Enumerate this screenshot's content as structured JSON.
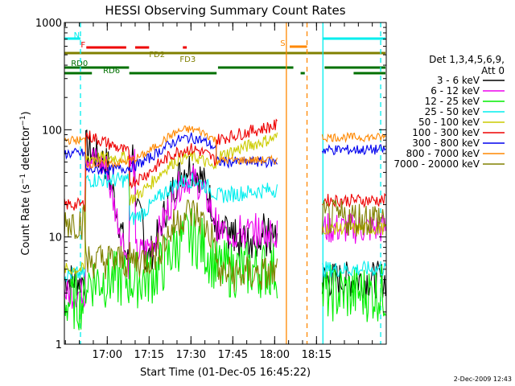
{
  "chart_data": {
    "type": "line",
    "title": "HESSI Observing Summary Count Rates",
    "xlabel": "Start Time (01-Dec-05 16:45:22)",
    "ylabel": "Count Rate (s⁻¹ detector⁻¹)",
    "ylabel_main": "Count Rate (s",
    "ylabel_sup1": "−1",
    "ylabel_mid": " detector",
    "ylabel_sup2": "−1",
    "ylabel_end": ")",
    "yscale": "log",
    "ylim": [
      1,
      1000
    ],
    "xlim_minutes": [
      -15.37,
      100.0
    ],
    "x_ticks": [
      {
        "label": "17:00",
        "min": 0
      },
      {
        "label": "17:15",
        "min": 15
      },
      {
        "label": "17:30",
        "min": 30
      },
      {
        "label": "17:45",
        "min": 45
      },
      {
        "label": "18:00",
        "min": 60
      },
      {
        "label": "18:15",
        "min": 75
      }
    ],
    "y_ticks": [
      {
        "label": "1",
        "v": 1
      },
      {
        "label": "10",
        "v": 10
      },
      {
        "label": "100",
        "v": 100
      },
      {
        "label": "1000",
        "v": 1000
      }
    ],
    "legend_header_1": "Det 1,3,4,5,6,9,",
    "legend_header_2": "Att 0",
    "legend_placement": "right",
    "timestamp": "2-Dec-2009 12:43",
    "series": [
      {
        "name": "3 - 6 keV",
        "color": "#000000"
      },
      {
        "name": "6 - 12 keV",
        "color": "#ee00ee"
      },
      {
        "name": "12 - 25 keV",
        "color": "#00ee00"
      },
      {
        "name": "25 - 50 keV",
        "color": "#00eeee"
      },
      {
        "name": "50 - 100 keV",
        "color": "#cccc00"
      },
      {
        "name": "100 - 300 keV",
        "color": "#ee0000"
      },
      {
        "name": "300 - 800 keV",
        "color": "#0000ee"
      },
      {
        "name": "800 - 7000 keV",
        "color": "#ff8800"
      },
      {
        "name": "7000 - 20000 keV",
        "color": "#808000"
      }
    ],
    "flag_bars": [
      {
        "label": "N",
        "color": "#00eeee",
        "segments": [
          [
            -15.4,
            -9.6
          ],
          [
            77.1,
            100.0
          ]
        ]
      },
      {
        "label": "S",
        "color": "#ff8800",
        "segments": [
          [
            65.4,
            71.6
          ]
        ]
      },
      {
        "label": "F",
        "color": "#ee0000",
        "segments": [
          [
            -7.5,
            6.8
          ],
          [
            10.0,
            15.0
          ],
          [
            27.1,
            28.5
          ]
        ]
      },
      {
        "label": "FD2",
        "color": "#808000",
        "segments": [
          [
            -15.4,
            19.2
          ]
        ]
      },
      {
        "label": "FD3",
        "color": "#808000",
        "segments": [
          [
            11.0,
            100.0
          ]
        ]
      },
      {
        "label": "RD0",
        "color": "#007000",
        "segments": [
          [
            -15.4,
            7.8
          ],
          [
            39.7,
            66.7
          ],
          [
            77.9,
            100.0
          ]
        ]
      },
      {
        "label": "RD6",
        "color": "#007000",
        "segments": [
          [
            -15.4,
            -5.5
          ],
          [
            7.9,
            39.2
          ],
          [
            69.3,
            70.8
          ],
          [
            88.3,
            100.0
          ]
        ]
      }
    ],
    "vlines": [
      {
        "min": -9.6,
        "color": "#00eeee",
        "dash": true
      },
      {
        "min": 64.2,
        "color": "#ff8800",
        "dash": false
      },
      {
        "min": 71.6,
        "color": "#ff8800",
        "dash": true
      },
      {
        "min": 77.3,
        "color": "#00eeee",
        "dash": false
      },
      {
        "min": 98.0,
        "color": "#00eeee",
        "dash": true
      }
    ]
  }
}
